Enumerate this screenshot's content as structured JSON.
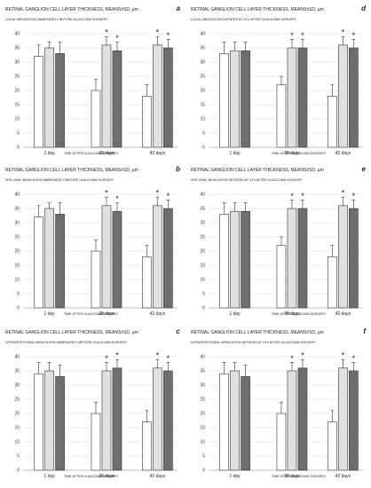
{
  "chart_data": [
    {
      "type": "bar",
      "letter": "a",
      "title": "RETINAL GANGLION CELL LAYER THICKNESS,  MEANS±SD, µm",
      "subtitle": "LOCAL MEDICATION IMMEDIATELY BEFORE GLAUCOMA SURGERY",
      "xlabel": "TIME AFTER GLAUCOMA SURGERY",
      "categories": [
        "1 day",
        "28 days",
        "42 days"
      ],
      "ylim": [
        0,
        40
      ],
      "yticks": [
        0,
        5,
        10,
        15,
        20,
        25,
        30,
        35,
        40
      ],
      "series": [
        {
          "color": "#ffffff",
          "values": [
            32,
            20,
            18
          ],
          "sd": [
            4,
            4,
            4
          ],
          "star": [
            false,
            false,
            false
          ]
        },
        {
          "color": "#e0e0e0",
          "values": [
            35,
            36,
            36
          ],
          "sd": [
            2,
            3,
            3
          ],
          "star": [
            false,
            true,
            true
          ]
        },
        {
          "color": "#6e6e6e",
          "values": [
            33,
            34,
            35
          ],
          "sd": [
            4,
            3,
            3
          ],
          "star": [
            false,
            true,
            true
          ]
        }
      ]
    },
    {
      "type": "bar",
      "letter": "d",
      "title": "RETINAL GANGLION CELL LAYER THICKNESS,  MEANS±SD, µm",
      "subtitle": "LOCAL MEDICATION INITIATED AT 24 h AFTER GLAUCOMA SURGERY",
      "xlabel": "TIME AFTER GLAUCOMA SURGERY",
      "categories": [
        "1 day",
        "28 days",
        "42 days"
      ],
      "ylim": [
        0,
        40
      ],
      "yticks": [
        0,
        5,
        10,
        15,
        20,
        25,
        30,
        35,
        40
      ],
      "series": [
        {
          "color": "#ffffff",
          "values": [
            33,
            22,
            18
          ],
          "sd": [
            4,
            3,
            4
          ],
          "star": [
            false,
            false,
            false
          ]
        },
        {
          "color": "#e0e0e0",
          "values": [
            34,
            35,
            36
          ],
          "sd": [
            3,
            3,
            3
          ],
          "star": [
            false,
            true,
            true
          ]
        },
        {
          "color": "#6e6e6e",
          "values": [
            34,
            35,
            35
          ],
          "sd": [
            3,
            3,
            3
          ],
          "star": [
            false,
            true,
            true
          ]
        }
      ]
    },
    {
      "type": "bar",
      "letter": "b",
      "title": "RETINAL GANGLION CELL LAYER THICKNESS,  MEANS±SD, µm",
      "subtitle": "PER-ORAL MEDICATION IMMEDIATELY BEFORE GLAUCOMA SURGERY",
      "xlabel": "TIME AFTER GLAUCOMA SURGERY",
      "categories": [
        "1 day",
        "28 days",
        "42 days"
      ],
      "ylim": [
        0,
        40
      ],
      "yticks": [
        0,
        5,
        10,
        15,
        20,
        25,
        30,
        35,
        40
      ],
      "series": [
        {
          "color": "#ffffff",
          "values": [
            32,
            20,
            18
          ],
          "sd": [
            4,
            4,
            4
          ],
          "star": [
            false,
            false,
            false
          ]
        },
        {
          "color": "#e0e0e0",
          "values": [
            35,
            36,
            36
          ],
          "sd": [
            2,
            3,
            3
          ],
          "star": [
            false,
            true,
            true
          ]
        },
        {
          "color": "#6e6e6e",
          "values": [
            33,
            34,
            35
          ],
          "sd": [
            4,
            3,
            3
          ],
          "star": [
            false,
            true,
            true
          ]
        }
      ]
    },
    {
      "type": "bar",
      "letter": "e",
      "title": "RETINAL GANGLION CELL LAYER THICKNESS,  MEANS±SD, µm",
      "subtitle": "PER-ORAL MEDICATION INITIATED AT 24 h AFTER GLAUCOMA SURGERY",
      "xlabel": "TIME AFTER GLAUCOMA SURGERY",
      "categories": [
        "1 day",
        "28 days",
        "42 days"
      ],
      "ylim": [
        0,
        40
      ],
      "yticks": [
        0,
        5,
        10,
        15,
        20,
        25,
        30,
        35,
        40
      ],
      "series": [
        {
          "color": "#ffffff",
          "values": [
            33,
            22,
            18
          ],
          "sd": [
            4,
            3,
            4
          ],
          "star": [
            false,
            false,
            false
          ]
        },
        {
          "color": "#e0e0e0",
          "values": [
            34,
            35,
            36
          ],
          "sd": [
            3,
            3,
            3
          ],
          "star": [
            false,
            true,
            true
          ]
        },
        {
          "color": "#6e6e6e",
          "values": [
            34,
            35,
            35
          ],
          "sd": [
            3,
            3,
            3
          ],
          "star": [
            false,
            true,
            true
          ]
        }
      ]
    },
    {
      "type": "bar",
      "letter": "c",
      "title": "RETINAL GANGLION CELL LAYER THICKNESS,  MEANS±SD, µm",
      "subtitle": "INTRAPERITONEAL MEDICATION IMMEDIATELY BEFORE GLAUCOMA SURGERY",
      "xlabel": "TIME AFTER GLAUCOMA SURGERY",
      "categories": [
        "1 day",
        "28 days",
        "42 days"
      ],
      "ylim": [
        0,
        40
      ],
      "yticks": [
        0,
        5,
        10,
        15,
        20,
        25,
        30,
        35,
        40
      ],
      "series": [
        {
          "color": "#ffffff",
          "values": [
            34,
            20,
            17
          ],
          "sd": [
            4,
            4,
            4
          ],
          "star": [
            false,
            false,
            false
          ]
        },
        {
          "color": "#e0e0e0",
          "values": [
            35,
            35,
            36
          ],
          "sd": [
            3,
            3,
            3
          ],
          "star": [
            false,
            true,
            true
          ]
        },
        {
          "color": "#6e6e6e",
          "values": [
            33,
            36,
            35
          ],
          "sd": [
            4,
            3,
            3
          ],
          "star": [
            false,
            true,
            true
          ]
        }
      ]
    },
    {
      "type": "bar",
      "letter": "f",
      "title": "RETINAL GANGLION CELL LAYER THICKNESS,  MEANS±SD, µm",
      "subtitle": "INTRAPERITONEAL MEDICATION INITIATED AT 24 h AFTER GLAUCOMA SURGERY",
      "xlabel": "TIME AFTER GLAUCOMA SURGERY",
      "categories": [
        "1 day",
        "28 days",
        "42 days"
      ],
      "ylim": [
        0,
        40
      ],
      "yticks": [
        0,
        5,
        10,
        15,
        20,
        25,
        30,
        35,
        40
      ],
      "series": [
        {
          "color": "#ffffff",
          "values": [
            34,
            20,
            17
          ],
          "sd": [
            4,
            4,
            4
          ],
          "star": [
            false,
            false,
            false
          ]
        },
        {
          "color": "#e0e0e0",
          "values": [
            35,
            35,
            36
          ],
          "sd": [
            3,
            3,
            3
          ],
          "star": [
            false,
            true,
            true
          ]
        },
        {
          "color": "#6e6e6e",
          "values": [
            33,
            36,
            35
          ],
          "sd": [
            4,
            3,
            3
          ],
          "star": [
            false,
            true,
            true
          ]
        }
      ]
    }
  ]
}
